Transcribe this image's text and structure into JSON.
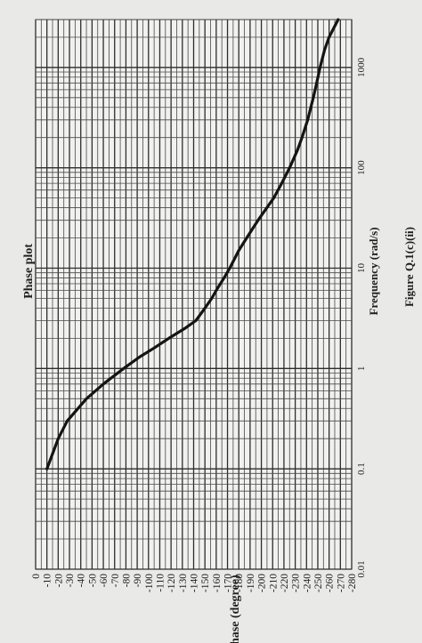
{
  "chart_data": {
    "type": "line",
    "title": "Phase plot",
    "xlabel": "Frequency (rad/s)",
    "ylabel": "Phase (degree)",
    "caption": "Figure Q.1(c)(ii)",
    "xscale": "log",
    "xlim": [
      0.01,
      3000
    ],
    "ylim": [
      -280,
      0
    ],
    "grid": true,
    "x_ticks": [
      {
        "value": 0.01,
        "label": "0.01"
      },
      {
        "value": 0.1,
        "label": "0.1"
      },
      {
        "value": 1,
        "label": "1"
      },
      {
        "value": 10,
        "label": "10"
      },
      {
        "value": 100,
        "label": "100"
      },
      {
        "value": 1000,
        "label": "1000"
      }
    ],
    "y_ticks": [
      {
        "value": 0,
        "label": "0"
      },
      {
        "value": -10,
        "label": "-10"
      },
      {
        "value": -20,
        "label": "-20"
      },
      {
        "value": -30,
        "label": "-30"
      },
      {
        "value": -40,
        "label": "-40"
      },
      {
        "value": -50,
        "label": "-50"
      },
      {
        "value": -60,
        "label": "-60"
      },
      {
        "value": -70,
        "label": "-70"
      },
      {
        "value": -80,
        "label": "-80"
      },
      {
        "value": -90,
        "label": "-90"
      },
      {
        "value": -100,
        "label": "-100"
      },
      {
        "value": -110,
        "label": "-110"
      },
      {
        "value": -120,
        "label": "-120"
      },
      {
        "value": -130,
        "label": "-130"
      },
      {
        "value": -140,
        "label": "-140"
      },
      {
        "value": -150,
        "label": "-150"
      },
      {
        "value": -160,
        "label": "-160"
      },
      {
        "value": -170,
        "label": "-170"
      },
      {
        "value": -180,
        "label": "-180"
      },
      {
        "value": -190,
        "label": "-190"
      },
      {
        "value": -200,
        "label": "-200"
      },
      {
        "value": -210,
        "label": "-210"
      },
      {
        "value": -220,
        "label": "-220"
      },
      {
        "value": -230,
        "label": "-230"
      },
      {
        "value": -240,
        "label": "-240"
      },
      {
        "value": -250,
        "label": "-250"
      },
      {
        "value": -260,
        "label": "-260"
      },
      {
        "value": -270,
        "label": "-270"
      },
      {
        "value": -280,
        "label": "-280"
      }
    ],
    "series": [
      {
        "x": [
          0.1,
          0.2,
          0.3,
          0.5,
          0.7,
          1.0,
          1.3,
          1.6,
          2.0,
          2.5,
          3.0,
          4.0,
          5.0,
          6.0,
          8.0,
          10,
          15,
          20,
          30,
          50,
          70,
          100,
          150,
          200,
          300,
          500,
          700,
          1000,
          1500,
          2000,
          3000
        ],
        "y": [
          -10,
          -20,
          -28,
          -45,
          -60,
          -78,
          -92,
          -105,
          -118,
          -132,
          -142,
          -150,
          -156,
          -160,
          -167,
          -172,
          -180,
          -187,
          -197,
          -211,
          -218,
          -225,
          -232,
          -236,
          -241,
          -246,
          -249,
          -252,
          -256,
          -260,
          -268
        ]
      }
    ]
  }
}
